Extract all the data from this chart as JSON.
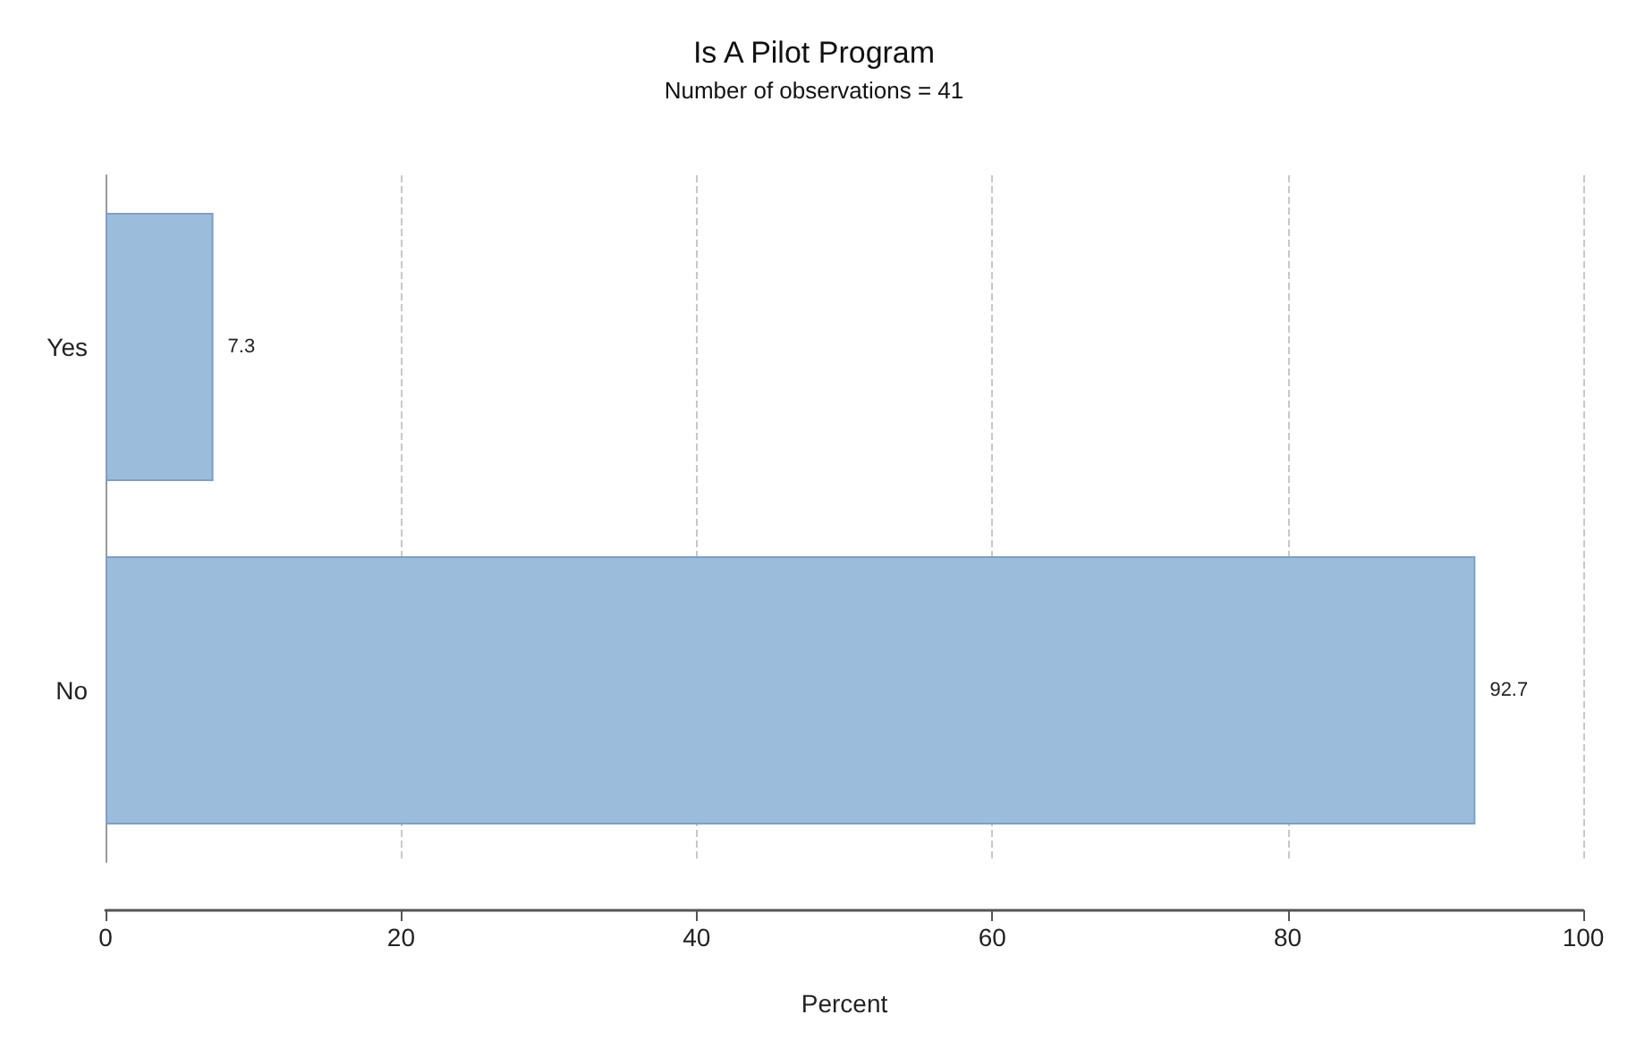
{
  "chart_data": {
    "type": "bar",
    "orientation": "horizontal",
    "title": "Is A Pilot Program",
    "subtitle": "Number of observations = 41",
    "xlabel": "Percent",
    "categories": [
      "Yes",
      "No"
    ],
    "values": [
      7.3,
      92.7
    ],
    "color": "#9bbcdb",
    "data_labels": true,
    "xlim": [
      0,
      100
    ],
    "xticks": [
      0,
      20,
      40,
      60,
      80,
      100
    ],
    "grid": "x"
  }
}
